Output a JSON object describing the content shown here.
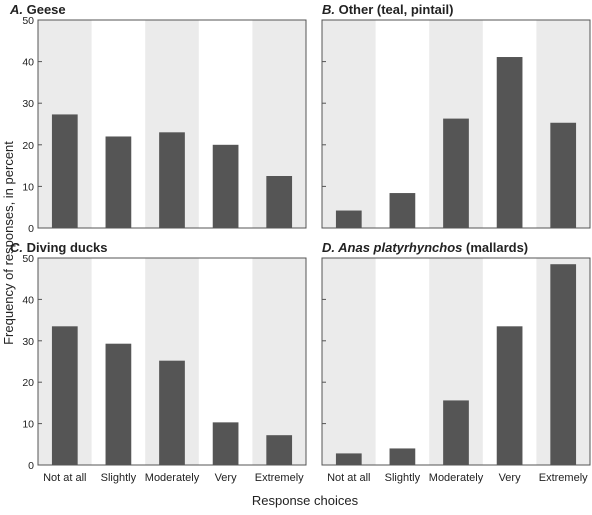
{
  "figure": {
    "ylabel": "Frequency of responses, in percent",
    "xlabel": "Response choices"
  },
  "colors": {
    "bar": "#555555",
    "band": "#ebebeb",
    "frame": "#555555"
  },
  "chart_data": [
    {
      "type": "bar",
      "letter": "A.",
      "title": "Geese",
      "title_italic": "",
      "categories": [
        "Not at all",
        "Slightly",
        "Moderately",
        "Very",
        "Extremely"
      ],
      "values": [
        27.3,
        22,
        23,
        20,
        12.5
      ],
      "ylim": [
        0,
        50
      ],
      "yticks": [
        0,
        10,
        20,
        30,
        40,
        50
      ],
      "show_categories": false,
      "show_yticks": true
    },
    {
      "type": "bar",
      "letter": "B.",
      "title": "Other (teal, pintail)",
      "title_italic": "",
      "categories": [
        "Not at all",
        "Slightly",
        "Moderately",
        "Very",
        "Extremely"
      ],
      "values": [
        4.2,
        8.4,
        26.3,
        41.1,
        25.3
      ],
      "ylim": [
        0,
        50
      ],
      "yticks": [
        0,
        10,
        20,
        30,
        40,
        50
      ],
      "show_categories": false,
      "show_yticks": false
    },
    {
      "type": "bar",
      "letter": "C.",
      "title": "Diving ducks",
      "title_italic": "",
      "categories": [
        "Not at all",
        "Slightly",
        "Moderately",
        "Very",
        "Extremely"
      ],
      "values": [
        33.5,
        29.3,
        25.2,
        10.3,
        7.2
      ],
      "ylim": [
        0,
        50
      ],
      "yticks": [
        0,
        10,
        20,
        30,
        40,
        50
      ],
      "show_categories": true,
      "show_yticks": true
    },
    {
      "type": "bar",
      "letter": "D.",
      "title": "(mallards)",
      "title_italic": "Anas platyrhynchos",
      "categories": [
        "Not at all",
        "Slightly",
        "Moderately",
        "Very",
        "Extremely"
      ],
      "values": [
        2.8,
        4,
        15.6,
        33.5,
        48.5
      ],
      "ylim": [
        0,
        50
      ],
      "yticks": [
        0,
        10,
        20,
        30,
        40,
        50
      ],
      "show_categories": true,
      "show_yticks": false
    }
  ]
}
